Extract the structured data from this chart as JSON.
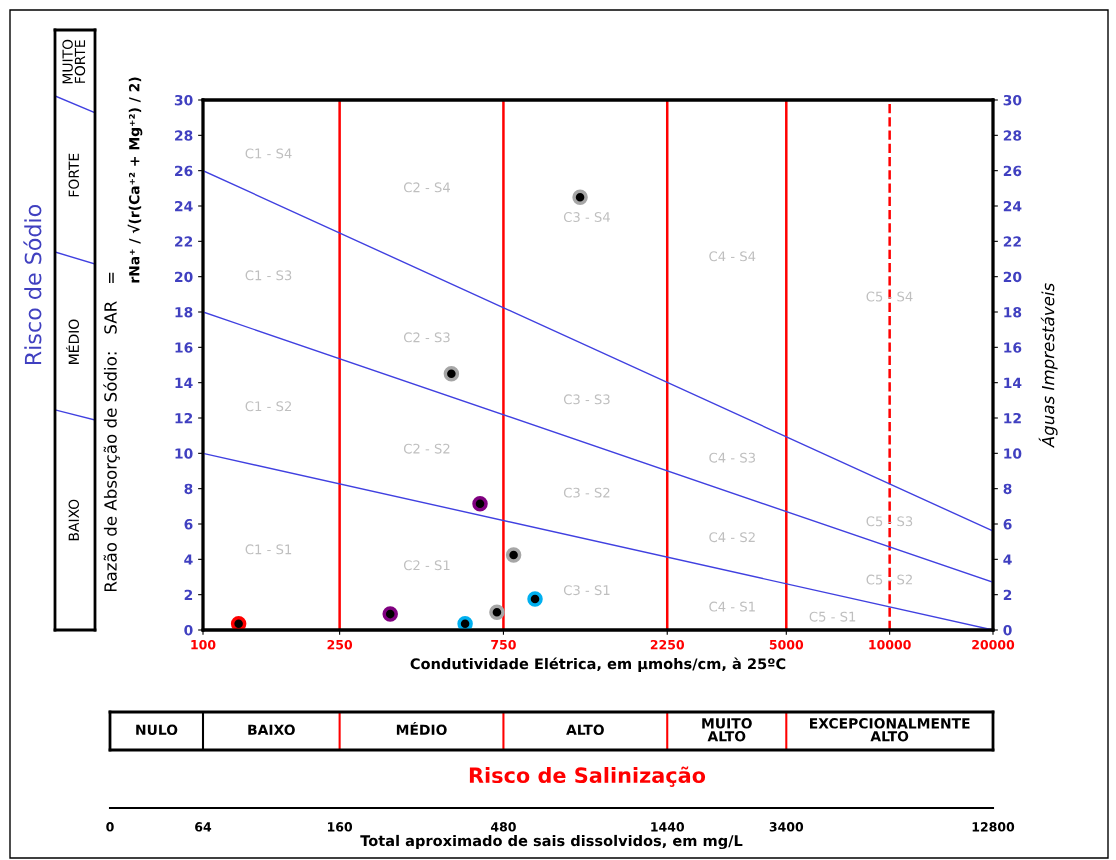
{
  "chart_data": {
    "type": "scatter",
    "xlabel": "Condutividade Elétrica, em µmohs/cm, à 25ºC",
    "ylabel": "Razão de Absorção de Sódio:   SAR   =",
    "y2label": "Águas Imprestáveis",
    "log": "x",
    "xlim": [
      100,
      20000
    ],
    "xticks": [
      100,
      250,
      750,
      2250,
      5000,
      10000,
      20000
    ],
    "ylim": [
      0,
      30
    ],
    "yticks": [
      0,
      2,
      4,
      6,
      8,
      10,
      12,
      14,
      16,
      18,
      20,
      22,
      24,
      26,
      28,
      30
    ],
    "y2lim": [
      0,
      30
    ],
    "y2ticks": [
      0,
      2,
      4,
      6,
      8,
      10,
      12,
      14,
      16,
      18,
      20,
      22,
      24,
      26,
      28,
      30
    ],
    "series": [
      {
        "type": "line",
        "color": "#4040e0",
        "marker": "none",
        "x": [
          100,
          20000
        ],
        "values": [
          26,
          5.6
        ]
      },
      {
        "type": "line",
        "color": "#4040e0",
        "marker": "none",
        "x": [
          100,
          20000
        ],
        "values": [
          18,
          2.7
        ]
      },
      {
        "type": "line",
        "color": "#4040e0",
        "marker": "none",
        "x": [
          100,
          20000
        ],
        "values": [
          10,
          0
        ]
      },
      {
        "marker": "circle",
        "x": [
          127,
          351,
          580,
          718,
          641,
          529,
          803,
          927,
          1254
        ],
        "values": [
          0.35,
          0.9,
          0.35,
          1.0,
          7.15,
          14.5,
          4.25,
          1.75,
          24.5
        ],
        "colors": [
          "#ff0000",
          "#800080",
          "#00b0f0",
          "#a6a6a6",
          "#800080",
          "#a6a6a6",
          "#a6a6a6",
          "#00b0f0",
          "#a6a6a6"
        ]
      }
    ],
    "ref_lines": [
      {
        "axis": "x",
        "value": 250,
        "color": "#ff0000",
        "line_style": "solid"
      },
      {
        "axis": "x",
        "value": 750,
        "color": "#ff0000",
        "line_style": "solid"
      },
      {
        "axis": "x",
        "value": 2250,
        "color": "#ff0000",
        "line_style": "solid"
      },
      {
        "axis": "x",
        "value": 5000,
        "color": "#ff0000",
        "line_style": "solid"
      },
      {
        "axis": "x",
        "value": 10000,
        "color": "#ff0000",
        "line_style": "dashed"
      }
    ],
    "annotations": [
      "Risco de Sódio",
      "BAIXO",
      "MÉDIO",
      "FORTE",
      "MUITO\nFORTE",
      "Risco de Salinização",
      "NULO",
      "BAIXO",
      "MÉDIO",
      "ALTO",
      "MUITO\nALTO",
      "EXCEPCIONALMENTE\nALTO",
      "rNa⁺ / √(r(Ca⁺² + Mg⁺²) / 2)",
      "C1 - S4",
      "C1 - S3",
      "C1 - S2",
      "C1 - S1",
      "C2 - S4",
      "C2 - S3",
      "C2 - S2",
      "C2 - S1",
      "C3 - S4",
      "C3 - S3",
      "C3 - S2",
      "C3 - S1",
      "C4 - S4",
      "C4 - S3",
      "C4 - S2",
      "C4 - S1",
      "C5 - S4",
      "C5 - S3",
      "C5 - S2",
      "C5 - S1",
      "0",
      "64",
      "160",
      "480",
      "1440",
      "3400",
      "12800",
      "Total aproximado de sais dissolvidos, em mg/L"
    ]
  }
}
